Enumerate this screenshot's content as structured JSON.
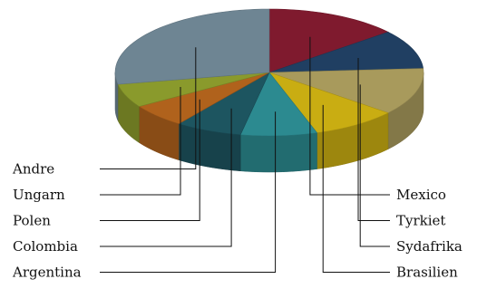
{
  "chart_data": {
    "type": "pie",
    "style": "3d-exploded-free",
    "legend": "none",
    "categories": [
      "Mexico",
      "Tyrkiet",
      "Sydafrika",
      "Brasilien",
      "Argentina",
      "Colombia",
      "Polen",
      "Ungarn",
      "Andre"
    ],
    "values": [
      14,
      10,
      12,
      9,
      8,
      7,
      6,
      6,
      28
    ],
    "colors": [
      "#7f1a2e",
      "#203f62",
      "#a89a5c",
      "#c9ad12",
      "#2c8a90",
      "#1d5560",
      "#b0621c",
      "#8a9a2c",
      "#6e8593"
    ],
    "label_sides": [
      "right",
      "right",
      "right",
      "right",
      "left",
      "left",
      "left",
      "left",
      "left"
    ]
  }
}
